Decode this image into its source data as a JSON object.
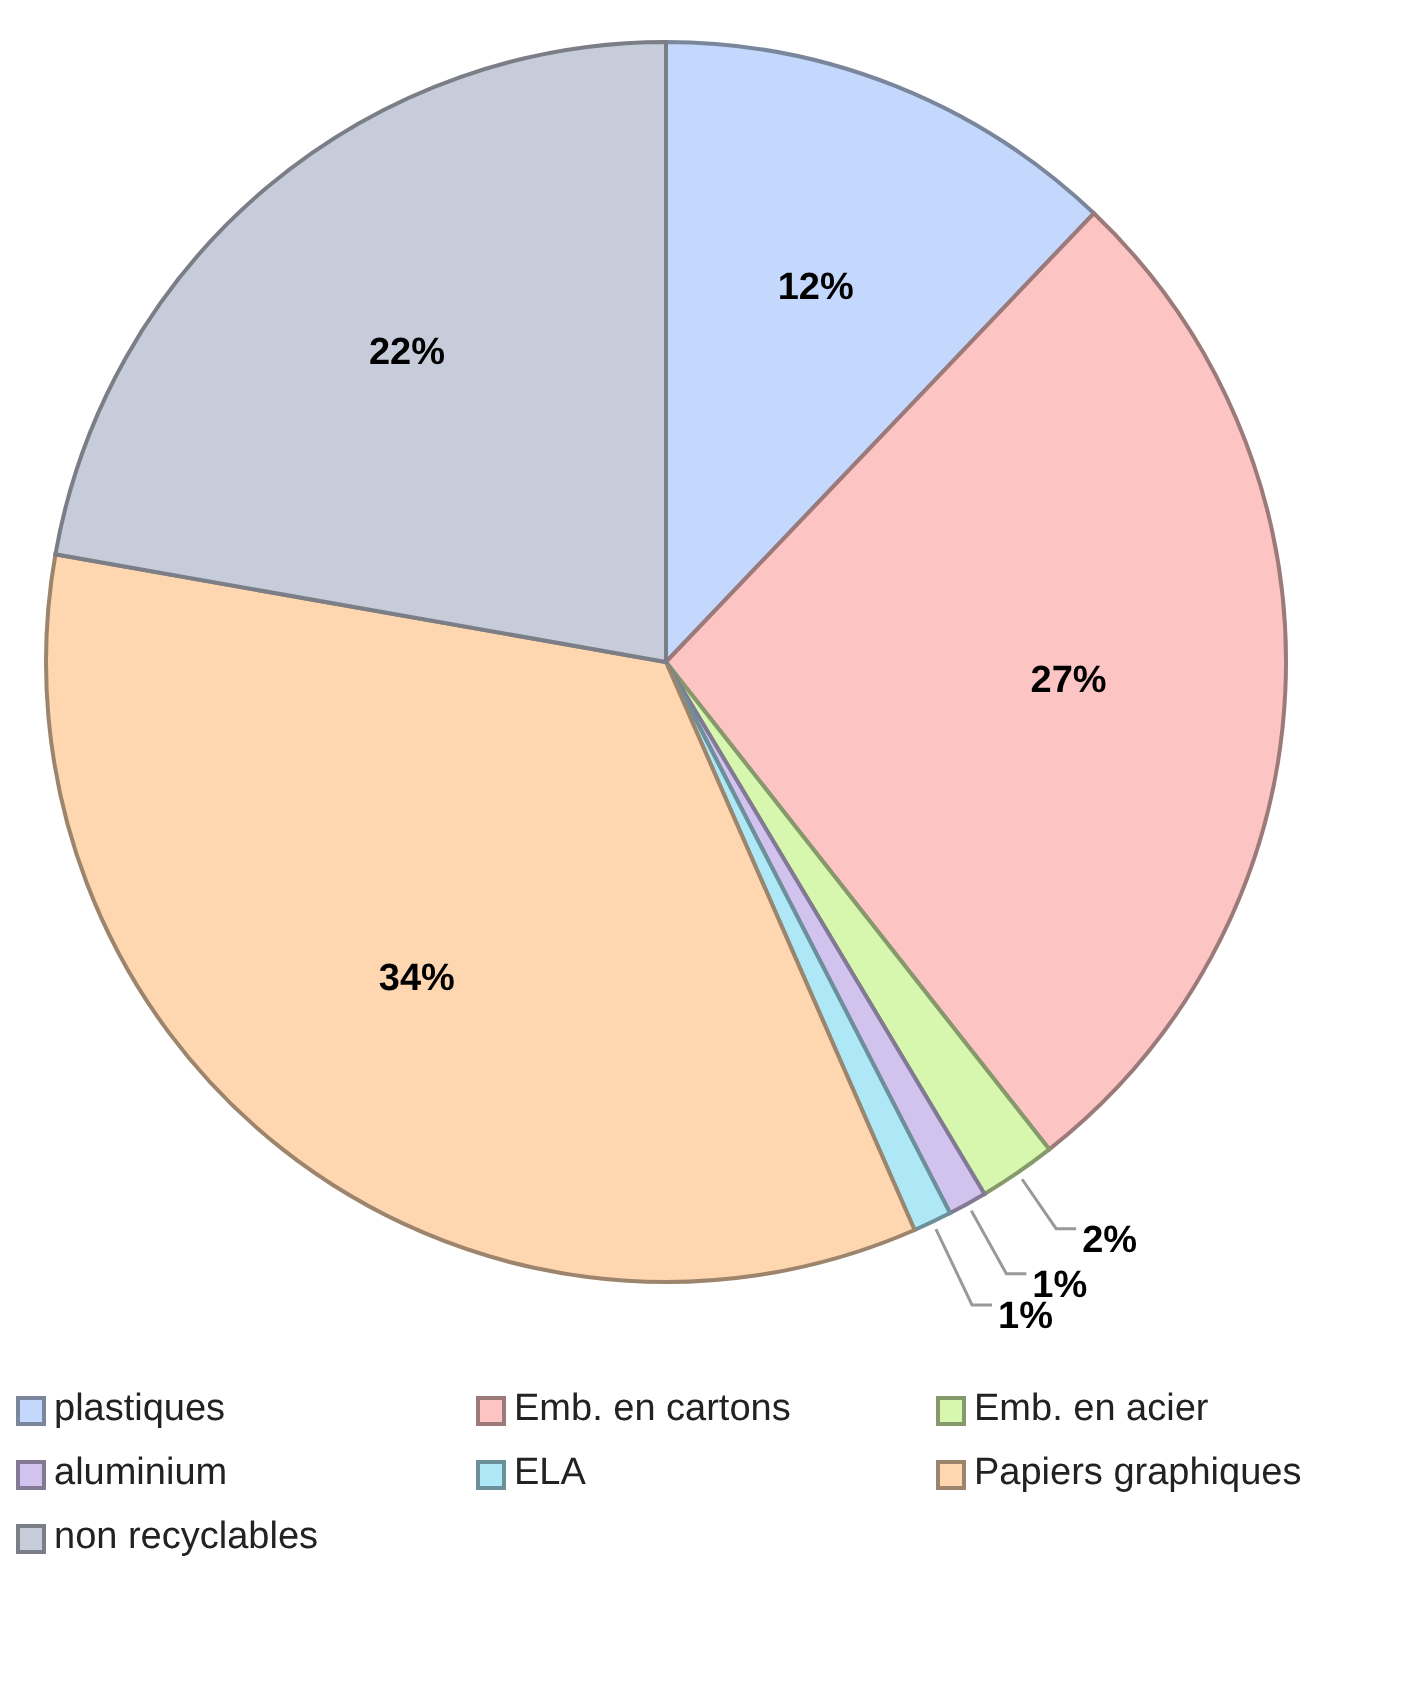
{
  "chart_data": {
    "type": "pie",
    "categories": [
      "plastiques",
      "Emb. en cartons",
      "Emb. en acier",
      "aluminium",
      "ELA",
      "Papiers graphiques",
      "non recyclables"
    ],
    "values": [
      12,
      27,
      2,
      1,
      1,
      34,
      22
    ],
    "value_labels": [
      "12%",
      "27%",
      "2%",
      "1%",
      "1%",
      "34%",
      "22%"
    ],
    "colors": [
      "#c3d8fc",
      "#fdc4c4",
      "#d6f7ad",
      "#d2c3ee",
      "#aee8f6",
      "#fed6b0",
      "#c6ccda"
    ],
    "legend": "bottom"
  }
}
